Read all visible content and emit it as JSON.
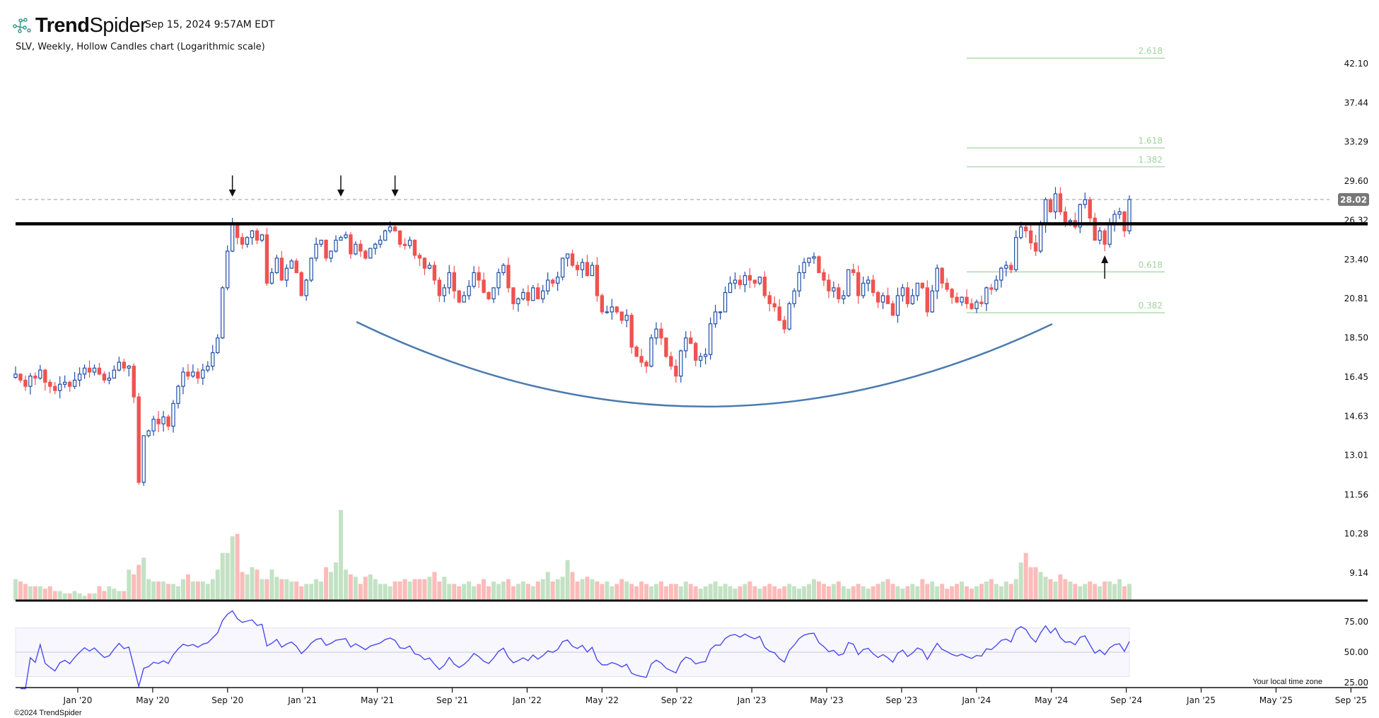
{
  "header": {
    "brand_bold": "Trend",
    "brand_light": "Spider",
    "timestamp": "Sep 15, 2024 9:57AM EDT",
    "subtitle": "SLV, Weekly, Hollow Candles chart (Logarithmic scale)"
  },
  "footer": {
    "copyright": "©2024 TrendSpider",
    "timezone_note": "Your local time zone"
  },
  "colors": {
    "up": "#1f4fa8",
    "down": "#ef5350",
    "vol_up": "#c3e2c4",
    "vol_down": "#fbbcb9",
    "rsi": "#4a4af0",
    "fib": "#9fd39f",
    "curve": "#4a7bb0"
  },
  "chart_data": {
    "type": "candlestick",
    "title": "SLV, Weekly, Hollow Candles chart (Logarithmic scale)",
    "scale": "log",
    "ylim": [
      8.6,
      44
    ],
    "price_ticks": [
      42.1,
      37.44,
      33.29,
      29.6,
      26.32,
      23.4,
      20.81,
      18.5,
      16.45,
      14.63,
      13.01,
      11.56,
      10.28,
      9.14
    ],
    "last_price": "28.02",
    "last_price_value": 28.02,
    "x_ticks": [
      "Jan '20",
      "May '20",
      "Sep '20",
      "Jan '21",
      "May '21",
      "Sep '21",
      "Jan '22",
      "May '22",
      "Sep '22",
      "Jan '23",
      "May '23",
      "Sep '23",
      "Jan '24",
      "May '24",
      "Sep '24",
      "Jan '25",
      "May '25",
      "Sep '25"
    ],
    "closes": [
      16.6,
      16.3,
      16.0,
      16.5,
      16.4,
      16.8,
      16.2,
      16.0,
      15.8,
      16.1,
      16.2,
      16.0,
      16.3,
      16.6,
      16.9,
      16.7,
      16.9,
      16.6,
      16.3,
      16.4,
      16.8,
      17.2,
      16.9,
      17.0,
      15.5,
      12.0,
      13.8,
      14.0,
      14.5,
      14.3,
      14.6,
      14.2,
      15.2,
      16.0,
      16.7,
      16.5,
      16.7,
      16.4,
      16.8,
      17.0,
      17.7,
      18.5,
      21.5,
      24.0,
      26.0,
      25.0,
      24.5,
      25.0,
      25.5,
      24.8,
      25.2,
      21.8,
      22.5,
      23.5,
      22.0,
      22.8,
      23.3,
      22.5,
      21.0,
      22.0,
      23.5,
      24.5,
      24.8,
      23.5,
      24.0,
      24.8,
      25.0,
      25.2,
      23.8,
      24.5,
      24.0,
      23.5,
      24.2,
      24.5,
      24.8,
      25.5,
      25.8,
      25.5,
      24.5,
      24.4,
      24.8,
      23.7,
      23.5,
      22.8,
      23.0,
      22.0,
      21.0,
      21.5,
      22.5,
      21.3,
      20.6,
      21.0,
      21.6,
      22.5,
      22.0,
      21.2,
      20.8,
      21.5,
      22.5,
      23.0,
      21.5,
      20.5,
      20.8,
      21.2,
      20.7,
      21.5,
      20.8,
      21.3,
      22.0,
      21.8,
      22.2,
      23.5,
      23.8,
      23.0,
      22.7,
      23.2,
      22.3,
      23.0,
      21.0,
      20.0,
      20.0,
      20.3,
      20.0,
      19.5,
      19.8,
      18.0,
      17.5,
      17.2,
      17.0,
      18.5,
      19.0,
      18.5,
      17.5,
      17.0,
      16.5,
      17.8,
      18.5,
      18.2,
      17.3,
      17.5,
      17.6,
      19.3,
      20.0,
      20.0,
      21.2,
      21.8,
      22.0,
      21.7,
      22.3,
      22.0,
      21.8,
      22.2,
      21.0,
      20.5,
      20.3,
      19.5,
      19.0,
      20.5,
      21.3,
      22.5,
      23.2,
      23.5,
      23.6,
      22.5,
      22.0,
      21.3,
      21.5,
      20.8,
      21.0,
      22.7,
      22.5,
      21.0,
      21.8,
      22.0,
      21.2,
      20.6,
      21.0,
      20.5,
      19.8,
      21.0,
      21.5,
      20.5,
      21.0,
      21.8,
      21.5,
      20.0,
      21.3,
      22.8,
      21.8,
      21.4,
      20.9,
      20.6,
      20.9,
      20.5,
      20.2,
      20.6,
      20.5,
      21.5,
      21.4,
      22.0,
      22.8,
      23.0,
      22.7,
      25.0,
      25.8,
      25.5,
      24.6,
      24.0,
      26.0,
      28.0,
      27.0,
      28.5,
      27.0,
      26.2,
      26.3,
      25.8,
      27.6,
      28.0,
      26.5,
      24.8,
      25.5,
      24.5,
      26.0,
      26.8,
      27.0,
      25.5,
      28.02
    ],
    "volumes": [
      9,
      8,
      7,
      6,
      6,
      6,
      5,
      6,
      4,
      4,
      3,
      3,
      4,
      3,
      2,
      3,
      3,
      6,
      4,
      6,
      5,
      4,
      4,
      13,
      11,
      15,
      18,
      9,
      8,
      8,
      8,
      7,
      7,
      6,
      9,
      11,
      8,
      8,
      8,
      7,
      9,
      13,
      20,
      20,
      27,
      28,
      12,
      11,
      14,
      13,
      9,
      9,
      13,
      10,
      9,
      9,
      8,
      8,
      6,
      7,
      7,
      9,
      8,
      14,
      12,
      16,
      38,
      13,
      11,
      10,
      7,
      10,
      11,
      9,
      7,
      7,
      6,
      8,
      8,
      9,
      8,
      9,
      9,
      9,
      10,
      12,
      8,
      10,
      7,
      7,
      6,
      7,
      8,
      6,
      7,
      9,
      6,
      8,
      7,
      8,
      9,
      6,
      7,
      8,
      7,
      6,
      8,
      9,
      12,
      8,
      9,
      10,
      17,
      12,
      8,
      9,
      10,
      9,
      8,
      7,
      8,
      6,
      7,
      9,
      8,
      7,
      6,
      8,
      7,
      6,
      7,
      8,
      6,
      7,
      7,
      6,
      8,
      7,
      6,
      5,
      6,
      7,
      8,
      6,
      7,
      6,
      5,
      6,
      7,
      8,
      6,
      5,
      6,
      7,
      6,
      5,
      6,
      7,
      6,
      5,
      6,
      7,
      9,
      8,
      7,
      6,
      7,
      8,
      6,
      5,
      6,
      7,
      6,
      5,
      6,
      7,
      8,
      9,
      7,
      6,
      5,
      6,
      7,
      6,
      9,
      7,
      8,
      6,
      7,
      5,
      6,
      7,
      8,
      6,
      5,
      6,
      7,
      8,
      9,
      7,
      6,
      8,
      7,
      9,
      16,
      20,
      14,
      14,
      12,
      10,
      9,
      8,
      11,
      9,
      8,
      7,
      6,
      7,
      8,
      7,
      6,
      8,
      8,
      7,
      9,
      6,
      7,
      8
    ],
    "resistance": 26.05,
    "arrows_down_at_index": [
      44,
      66,
      77
    ],
    "arrow_up_at_index": 221,
    "fib_levels": [
      {
        "label": "2.618",
        "price": 42.8
      },
      {
        "label": "1.618",
        "price": 32.7
      },
      {
        "label": "1.382",
        "price": 30.9
      },
      {
        "label": "0.618",
        "price": 22.55
      },
      {
        "label": "0.382",
        "price": 19.95
      }
    ],
    "rsi_ticks": [
      "75.00",
      "50.00",
      "25.00"
    ],
    "rsi_tick_values": [
      75,
      50,
      25
    ],
    "rsi_period": 14
  }
}
